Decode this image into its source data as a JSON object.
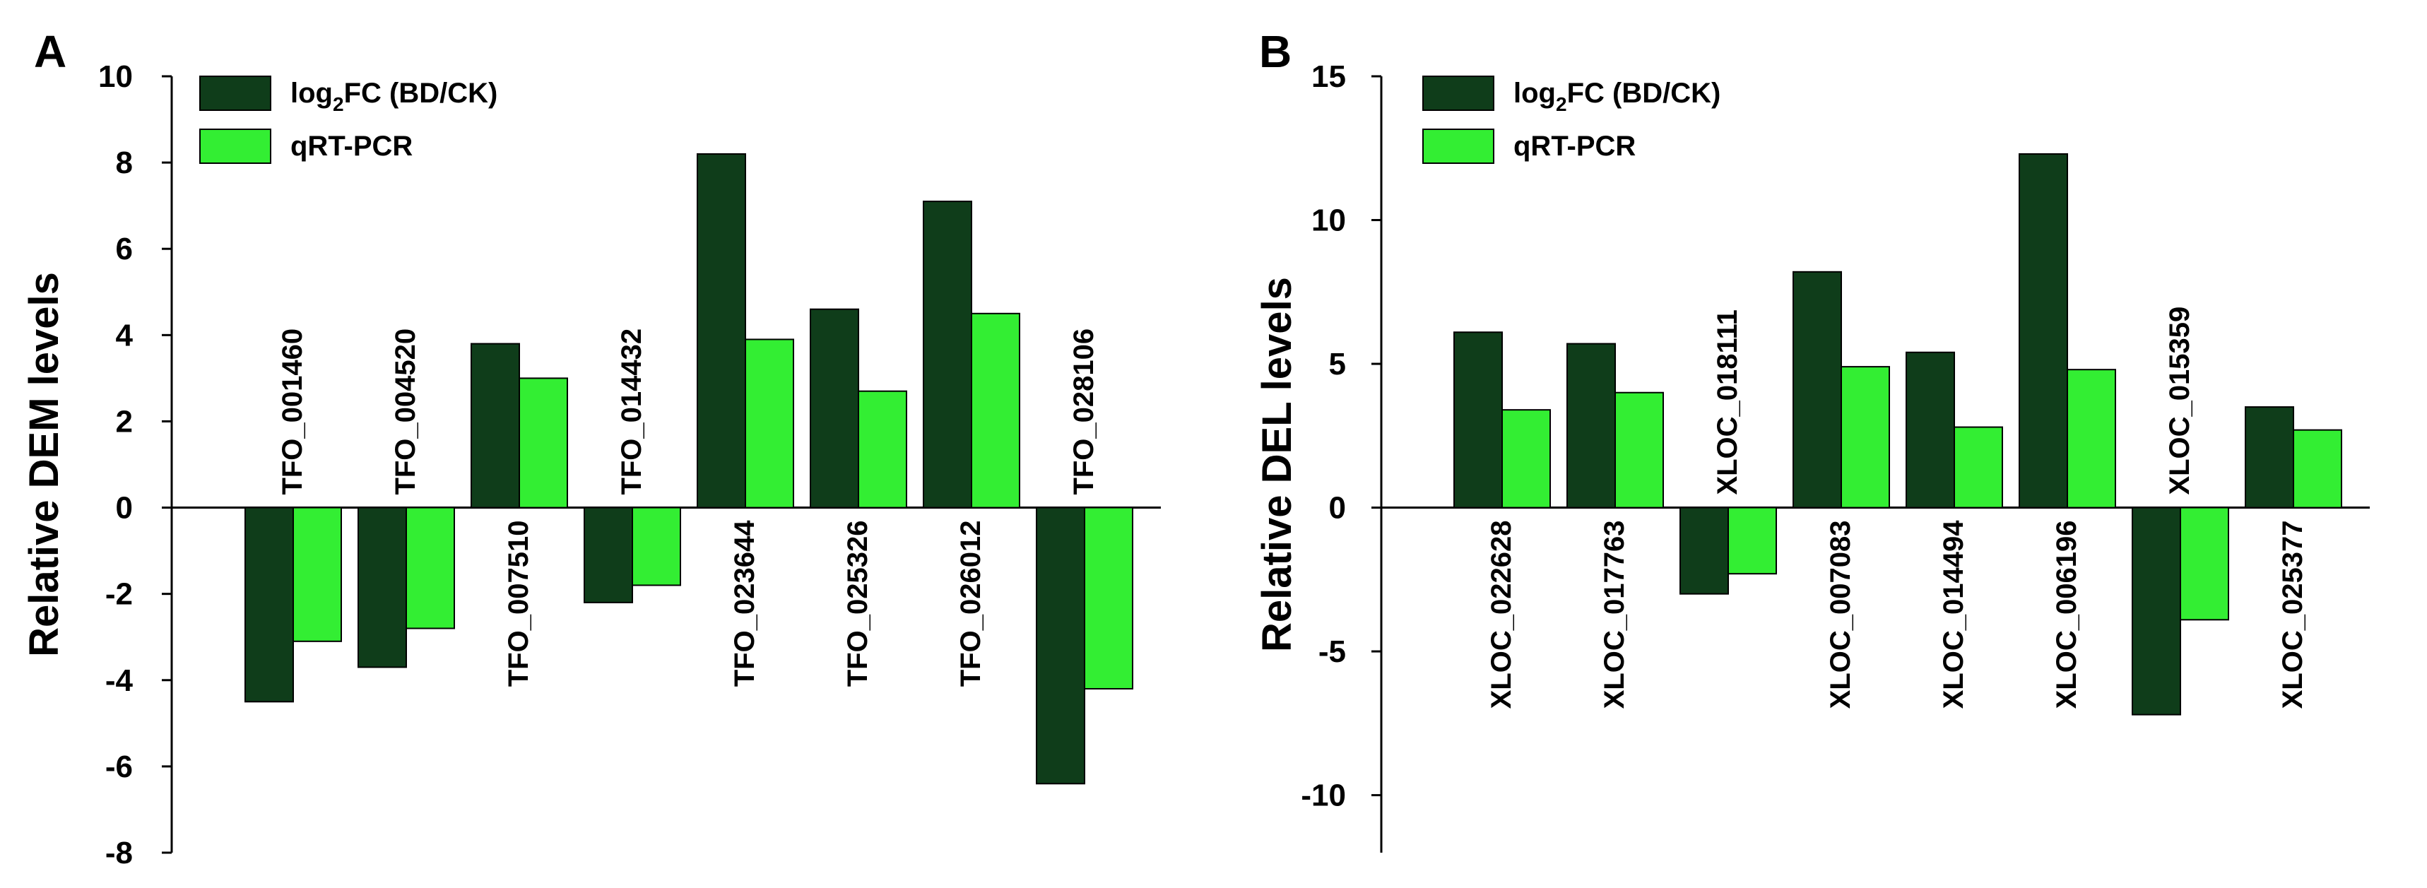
{
  "chart_data": [
    {
      "type": "bar",
      "panel": "A",
      "ylabel": "Relative DEM  levels",
      "xlabel": "",
      "ylim": [
        -8,
        10
      ],
      "yticks": [
        -8,
        -6,
        -4,
        -2,
        0,
        2,
        4,
        6,
        8,
        10
      ],
      "categories": [
        "TFO_001460",
        "TFO_004520",
        "TFO_007510",
        "TFO_014432",
        "TFO_023644",
        "TFO_025326",
        "TFO_026012",
        "TFO_028106"
      ],
      "series": [
        {
          "name": "log2FC (BD/CK)",
          "legend_main": "log",
          "legend_sub": "2",
          "legend_rest": "FC (BD/CK)",
          "color": "#0f3d1a",
          "values": [
            -4.5,
            -3.7,
            3.8,
            -2.2,
            8.2,
            4.6,
            7.1,
            -6.4
          ]
        },
        {
          "name": "qRT-PCR",
          "legend_main": "qRT-PCR",
          "legend_sub": "",
          "legend_rest": "",
          "color": "#33ee33",
          "values": [
            -3.1,
            -2.8,
            3.0,
            -1.8,
            3.9,
            2.7,
            4.5,
            -4.2
          ]
        }
      ]
    },
    {
      "type": "bar",
      "panel": "B",
      "ylabel": "Relative DEL  levels",
      "xlabel": "",
      "ylim": [
        -12,
        15
      ],
      "yticks": [
        -10,
        -5,
        0,
        5,
        10,
        15
      ],
      "categories": [
        "XLOC_022628",
        "XLOC_017763",
        "XLOC_018111",
        "XLOC_007083",
        "XLOC_014494",
        "XLOC_006196",
        "XLOC_015359",
        "XLOC_025377"
      ],
      "series": [
        {
          "name": "log2FC (BD/CK)",
          "legend_main": "log",
          "legend_sub": "2",
          "legend_rest": "FC (BD/CK)",
          "color": "#0f3d1a",
          "values": [
            6.1,
            5.7,
            -3.0,
            8.2,
            5.4,
            12.3,
            -7.2,
            3.5
          ]
        },
        {
          "name": "qRT-PCR",
          "legend_main": "qRT-PCR",
          "legend_sub": "",
          "legend_rest": "",
          "color": "#33ee33",
          "values": [
            3.4,
            4.0,
            -2.3,
            4.9,
            2.8,
            4.8,
            -3.9,
            2.7
          ]
        }
      ]
    }
  ]
}
